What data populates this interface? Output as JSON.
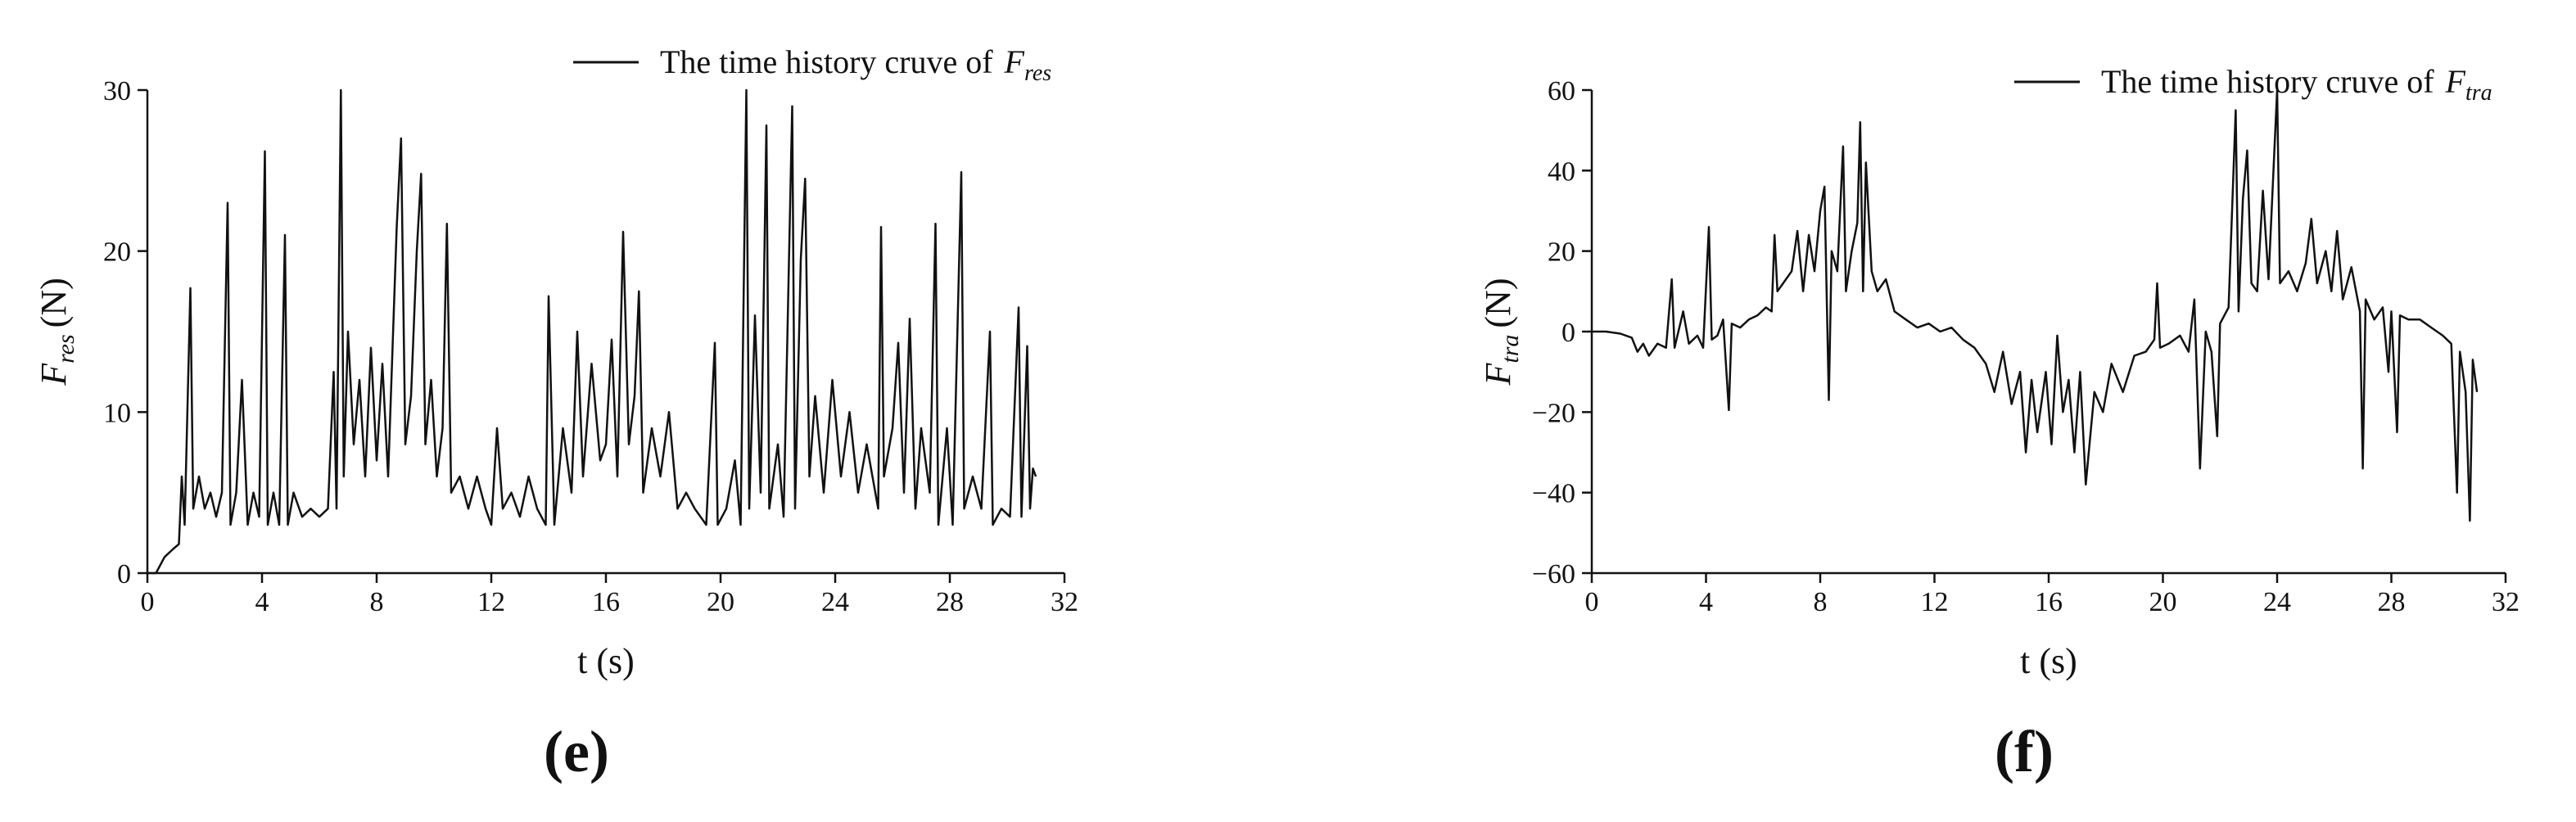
{
  "chart_data": [
    {
      "type": "line",
      "panel_label": "(e)",
      "xlabel": "t (s)",
      "ylabel": {
        "symbol": "F",
        "subscript": "res",
        "unit": "(N)"
      },
      "xlim": [
        0,
        32
      ],
      "xticks": [
        0,
        4,
        8,
        12,
        16,
        20,
        24,
        28,
        32
      ],
      "ylim": [
        0,
        30
      ],
      "yticks": [
        0,
        10,
        20,
        30
      ],
      "legend": "top-right",
      "series": [
        {
          "name": "The time history cruve of",
          "name_symbol": "F",
          "name_subscript": "res",
          "color": "#111111",
          "x": [
            0,
            0.3,
            0.6,
            0.9,
            1.1,
            1.2,
            1.3,
            1.5,
            1.6,
            1.8,
            2.0,
            2.2,
            2.4,
            2.6,
            2.8,
            2.9,
            3.1,
            3.3,
            3.5,
            3.7,
            3.9,
            4.1,
            4.2,
            4.4,
            4.6,
            4.8,
            4.9,
            5.1,
            5.4,
            5.7,
            6.0,
            6.3,
            6.5,
            6.6,
            6.75,
            6.85,
            7.0,
            7.2,
            7.4,
            7.6,
            7.8,
            8.0,
            8.2,
            8.4,
            8.7,
            8.85,
            9.0,
            9.2,
            9.4,
            9.55,
            9.7,
            9.9,
            10.1,
            10.3,
            10.45,
            10.6,
            10.9,
            11.2,
            11.5,
            11.8,
            12.0,
            12.2,
            12.4,
            12.7,
            13.0,
            13.3,
            13.6,
            13.9,
            14.0,
            14.2,
            14.5,
            14.8,
            15.0,
            15.2,
            15.5,
            15.8,
            16.0,
            16.2,
            16.4,
            16.6,
            16.8,
            17.0,
            17.15,
            17.3,
            17.6,
            17.9,
            18.2,
            18.5,
            18.8,
            19.1,
            19.5,
            19.8,
            19.9,
            20.2,
            20.5,
            20.7,
            20.9,
            21.0,
            21.2,
            21.4,
            21.6,
            21.7,
            22.0,
            22.2,
            22.5,
            22.6,
            22.8,
            22.95,
            23.1,
            23.3,
            23.6,
            23.9,
            24.2,
            24.5,
            24.8,
            25.1,
            25.5,
            25.6,
            25.7,
            26.0,
            26.2,
            26.4,
            26.6,
            26.8,
            27.0,
            27.3,
            27.5,
            27.6,
            27.9,
            28.1,
            28.4,
            28.5,
            28.8,
            29.1,
            29.4,
            29.5,
            29.8,
            30.1,
            30.4,
            30.5,
            30.7,
            30.8,
            30.9,
            31.0
          ],
          "values": [
            0,
            0,
            1,
            1.5,
            1.8,
            6,
            3,
            17.7,
            4,
            6,
            4,
            5,
            3.5,
            5,
            23,
            3,
            5,
            12,
            3,
            5,
            3.5,
            26.2,
            3,
            5,
            3,
            21,
            3,
            5,
            3.5,
            4,
            3.5,
            4,
            12.5,
            4,
            30,
            6,
            15,
            8,
            12,
            6,
            14,
            7,
            13,
            6,
            21.5,
            27,
            8,
            11,
            20,
            24.8,
            8,
            12,
            6,
            9,
            21.7,
            5,
            6,
            4,
            6,
            4,
            3,
            9,
            4,
            5,
            3.5,
            6,
            4,
            3,
            17.2,
            3,
            9,
            5,
            15,
            6,
            13,
            7,
            8,
            14.5,
            6,
            21.2,
            8,
            11,
            17.5,
            5,
            9,
            6,
            10,
            4,
            5,
            4,
            3,
            14.3,
            3,
            4,
            7,
            3,
            30,
            4,
            16,
            5,
            27.8,
            4,
            8,
            3.5,
            29,
            4,
            19.5,
            24.5,
            6,
            11,
            5,
            12,
            6,
            10,
            5,
            8,
            4,
            21.5,
            6,
            9,
            14.3,
            5,
            15.8,
            4,
            9,
            5,
            21.7,
            3,
            9,
            3,
            24.9,
            4,
            6,
            4,
            15,
            3,
            4,
            3.5,
            16.5,
            3.5,
            14.1,
            4,
            6.5,
            6
          ]
        }
      ]
    },
    {
      "type": "line",
      "panel_label": "(f)",
      "xlabel": "t (s)",
      "ylabel": {
        "symbol": "F",
        "subscript": "tra",
        "unit": "(N)"
      },
      "xlim": [
        0,
        32
      ],
      "xticks": [
        0,
        4,
        8,
        12,
        16,
        20,
        24,
        28,
        32
      ],
      "ylim": [
        -60,
        60
      ],
      "yticks": [
        {
          "value": -60,
          "label": "−60"
        },
        {
          "value": -40,
          "label": "−40"
        },
        {
          "value": -20,
          "label": "−20"
        },
        0,
        20,
        40,
        60
      ],
      "legend": "top-right",
      "series": [
        {
          "name": "The time history cruve of",
          "name_symbol": "F",
          "name_subscript": "tra",
          "color": "#111111",
          "x": [
            0,
            0.5,
            1.0,
            1.4,
            1.6,
            1.8,
            2.0,
            2.3,
            2.6,
            2.8,
            2.9,
            3.2,
            3.4,
            3.7,
            3.9,
            4.1,
            4.2,
            4.4,
            4.6,
            4.8,
            4.9,
            5.2,
            5.5,
            5.8,
            6.1,
            6.3,
            6.4,
            6.5,
            6.7,
            7.0,
            7.2,
            7.4,
            7.6,
            7.8,
            8.0,
            8.15,
            8.3,
            8.4,
            8.6,
            8.8,
            8.9,
            9.1,
            9.3,
            9.4,
            9.5,
            9.6,
            9.8,
            10.0,
            10.3,
            10.6,
            11.0,
            11.4,
            11.8,
            12.2,
            12.6,
            13.0,
            13.4,
            13.8,
            14.1,
            14.4,
            14.7,
            15.0,
            15.2,
            15.4,
            15.6,
            15.9,
            16.1,
            16.3,
            16.5,
            16.7,
            16.9,
            17.1,
            17.3,
            17.6,
            17.9,
            18.2,
            18.6,
            19.0,
            19.4,
            19.7,
            19.8,
            19.9,
            20.2,
            20.6,
            20.9,
            21.1,
            21.3,
            21.5,
            21.7,
            21.9,
            22.0,
            22.3,
            22.55,
            22.65,
            22.8,
            22.95,
            23.1,
            23.3,
            23.5,
            23.7,
            24.0,
            24.1,
            24.4,
            24.7,
            25.0,
            25.2,
            25.4,
            25.7,
            25.9,
            26.1,
            26.3,
            26.6,
            26.9,
            27.0,
            27.1,
            27.4,
            27.7,
            27.9,
            28.0,
            28.2,
            28.3,
            28.6,
            29.0,
            29.4,
            29.8,
            30.1,
            30.3,
            30.4,
            30.6,
            30.75,
            30.85,
            31.0
          ],
          "values": [
            0,
            0,
            -0.5,
            -1.5,
            -5,
            -3,
            -6,
            -3,
            -4,
            13,
            -4,
            5,
            -3,
            -1,
            -4,
            26,
            -2,
            -1,
            3,
            -19.5,
            2,
            1,
            3,
            4,
            6,
            5,
            24,
            10,
            12,
            15,
            25,
            10,
            24,
            15,
            30,
            36,
            -17,
            20,
            15,
            46,
            10,
            20,
            27,
            52,
            10,
            42,
            15,
            10,
            13,
            5,
            3,
            1,
            2,
            0,
            1,
            -2,
            -4,
            -8,
            -15,
            -5,
            -18,
            -10,
            -30,
            -12,
            -25,
            -10,
            -28,
            -1,
            -20,
            -12,
            -30,
            -10,
            -38,
            -15,
            -20,
            -8,
            -15,
            -6,
            -5,
            -2,
            12,
            -4,
            -3,
            -1,
            -5,
            8,
            -34,
            0,
            -5,
            -26,
            2,
            6,
            55,
            5,
            33,
            45,
            12,
            10,
            35,
            13,
            60,
            12,
            15,
            10,
            17,
            28,
            12,
            20,
            10,
            25,
            8,
            16,
            5,
            -34,
            8,
            3,
            6,
            -10,
            5,
            -25,
            4,
            3,
            3,
            1,
            -1,
            -3,
            -40,
            -5,
            -15,
            -47,
            -7,
            -15
          ]
        }
      ]
    }
  ]
}
